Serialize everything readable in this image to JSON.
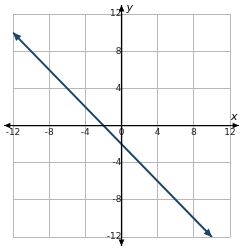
{
  "chart_data": {
    "type": "line",
    "xlabel": "x",
    "ylabel": "y",
    "series": [
      {
        "x": [
          -12,
          10
        ],
        "values": [
          10,
          -12
        ],
        "color": "#1d4466",
        "marker": "arrow"
      }
    ],
    "xlim": [
      -12,
      12
    ],
    "xticks": [
      -12,
      -8,
      -4,
      0,
      4,
      8,
      12
    ],
    "ylim": [
      -12,
      12
    ],
    "yticks": [
      -12,
      -8,
      -4,
      4,
      8,
      12
    ],
    "grid": true
  }
}
